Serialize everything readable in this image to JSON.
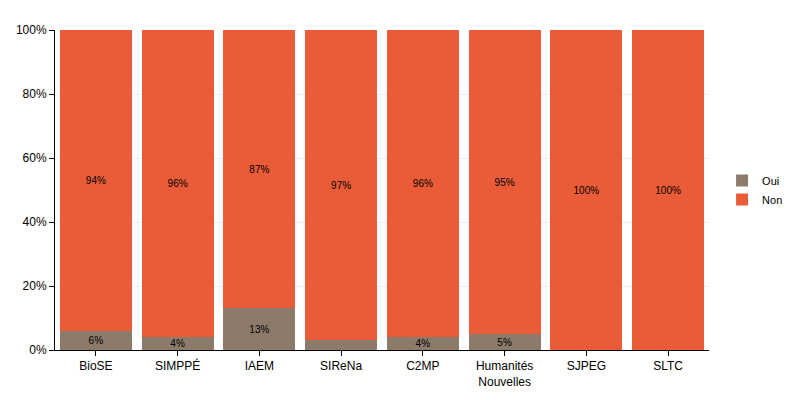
{
  "chart_data": {
    "type": "bar",
    "stacked": true,
    "categories": [
      "BioSE",
      "SIMPPÉ",
      "IAEM",
      "SIReNa",
      "C2MP",
      "Humanités Nouvelles",
      "SJPEG",
      "SLTC"
    ],
    "series": [
      {
        "name": "Oui",
        "color": "#8c7b6b",
        "values": [
          6,
          4,
          13,
          3,
          4,
          5,
          0,
          0
        ],
        "value_labels": [
          "6%",
          "4%",
          "13%",
          null,
          "4%",
          "5%",
          null,
          null
        ]
      },
      {
        "name": "Non",
        "color": "#e95c37",
        "values": [
          94,
          96,
          87,
          97,
          96,
          95,
          100,
          100
        ],
        "value_labels": [
          "94%",
          "96%",
          "87%",
          "97%",
          "96%",
          "95%",
          "100%",
          "100%"
        ]
      }
    ],
    "ylim": [
      0,
      100
    ],
    "yticks": [
      {
        "value": 0,
        "label": "0%"
      },
      {
        "value": 20,
        "label": "20%"
      },
      {
        "value": 40,
        "label": "40%"
      },
      {
        "value": 60,
        "label": "60%"
      },
      {
        "value": 80,
        "label": "80%"
      },
      {
        "value": 100,
        "label": "100%"
      }
    ],
    "grid": true,
    "legend": "right",
    "data_labels": true
  }
}
